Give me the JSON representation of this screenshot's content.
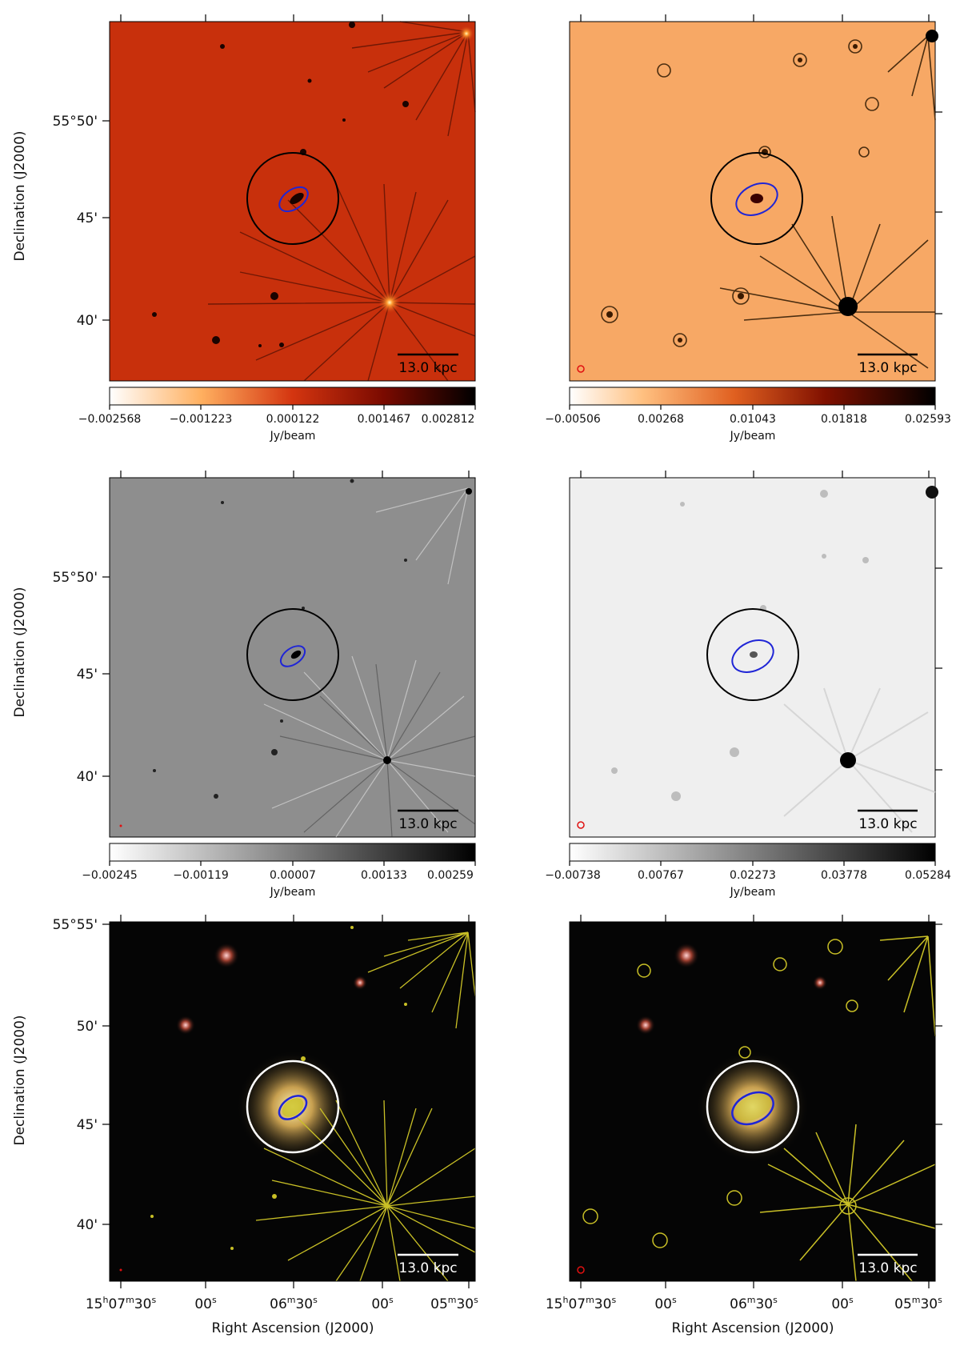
{
  "labels": {
    "dec_axis": "Declination (J2000)",
    "ra_axis": "Right Ascension (J2000)",
    "colorbar_unit": "Jy/beam",
    "scale_bar": "13.0 kpc"
  },
  "dec_ticks": {
    "top_rows": [
      "55°50'",
      "45'",
      "40'"
    ],
    "bottom_row": [
      "55°55'",
      "50'",
      "45'",
      "40'"
    ]
  },
  "ra_ticks": [
    {
      "h": "15",
      "hs": "h",
      "m": "07",
      "ms": "m",
      "s": "30",
      "ss": "s"
    },
    {
      "h": "",
      "hs": "",
      "m": "",
      "ms": "",
      "s": "00",
      "ss": "s"
    },
    {
      "h": "",
      "hs": "",
      "m": "06",
      "ms": "m",
      "s": "30",
      "ss": "s"
    },
    {
      "h": "",
      "hs": "",
      "m": "",
      "ms": "",
      "s": "00",
      "ss": "s"
    },
    {
      "h": "",
      "hs": "",
      "m": "05",
      "ms": "m",
      "s": "30",
      "ss": "s"
    }
  ],
  "colorbars": {
    "p1": [
      "−0.002568",
      "−0.001223",
      "0.000122",
      "0.001467",
      "0.002812"
    ],
    "p2": [
      "−0.00506",
      "0.00268",
      "0.01043",
      "0.01818",
      "0.02593"
    ],
    "p3": [
      "−0.00245",
      "−0.00119",
      "0.00007",
      "0.00133",
      "0.00259"
    ],
    "p4": [
      "−0.00738",
      "0.00767",
      "0.02273",
      "0.03778",
      "0.05284"
    ]
  },
  "colors": {
    "hot": "#c8300c",
    "orange": "#f7a865",
    "gray": "#8e8e8e",
    "lightgray": "#efefef",
    "optical": "#050505",
    "contour": "#c9c026",
    "ellipse": "#1f25d6",
    "beam": "#e01010"
  }
}
